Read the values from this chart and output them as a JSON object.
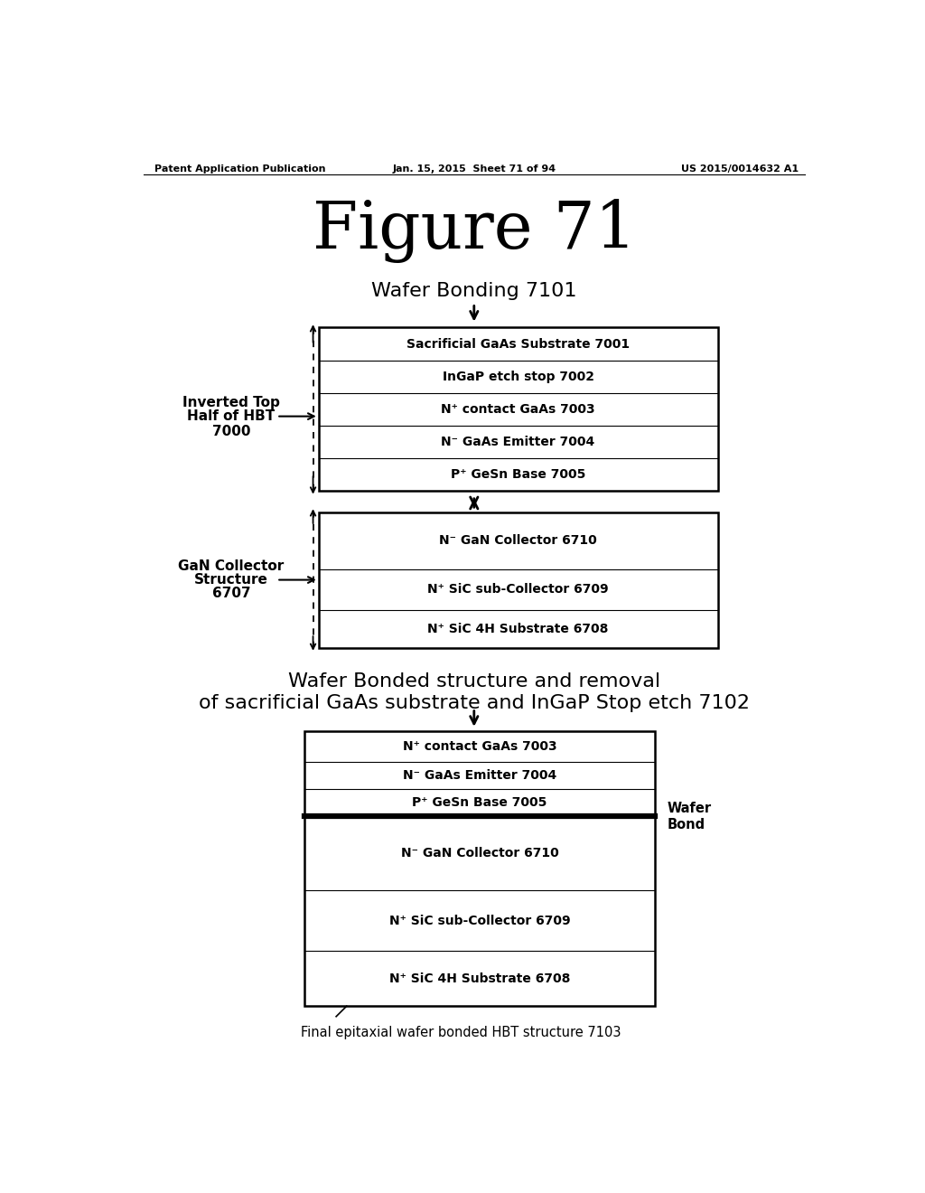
{
  "header_left": "Patent Application Publication",
  "header_mid": "Jan. 15, 2015  Sheet 71 of 94",
  "header_right": "US 2015/0014632 A1",
  "figure_title": "Figure 71",
  "section1_title": "Wafer Bonding 7101",
  "section2_title_line1": "Wafer Bonded structure and removal",
  "section2_title_line2": "of sacrificial GaAs substrate and InGaP Stop etch 7102",
  "section2_footer": "Final epitaxial wafer bonded HBT structure 7103",
  "top_box_label_line1": "Inverted Top",
  "top_box_label_line2": "Half of HBT",
  "top_box_label_line3": "7000",
  "bottom_box_label_line1": "GaN Collector",
  "bottom_box_label_line2": "Structure",
  "bottom_box_label_line3": "6707",
  "wafer_bond_label": "Wafer\nBond",
  "top_layers": [
    "Sacrificial GaAs Substrate 7001",
    "InGaP etch stop 7002",
    "N⁺ contact GaAs 7003",
    "N⁻ GaAs Emitter 7004",
    "P⁺ GeSn Base 7005"
  ],
  "bottom_layers": [
    "N⁻ GaN Collector 6710",
    "N⁺ SiC sub-Collector 6709",
    "N⁺ SiC 4H Substrate 6708"
  ],
  "bottom2_layers": [
    "N⁺ contact GaAs 7003",
    "N⁻ GaAs Emitter 7004",
    "P⁺ GeSn Base 7005",
    "N⁻ GaN Collector 6710",
    "N⁺ SiC sub-Collector 6709",
    "N⁺ SiC 4H Substrate 6708"
  ],
  "bg_color": "#ffffff",
  "box_edge_color": "#000000",
  "text_color": "#000000"
}
